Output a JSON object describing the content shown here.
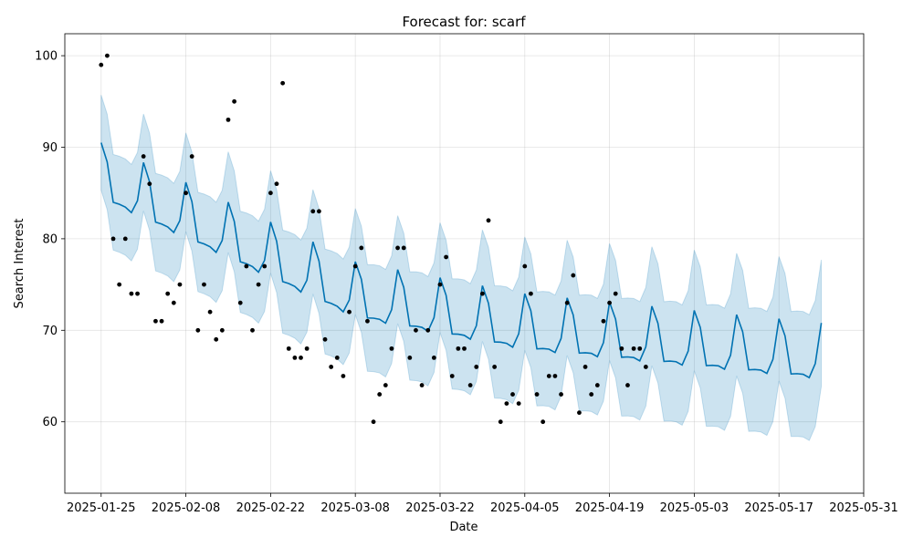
{
  "chart_data": {
    "type": "line",
    "title": "Forecast for: scarf",
    "xlabel": "Date",
    "ylabel": "Search Interest",
    "xlim": [
      "2025-01-19",
      "2025-05-31"
    ],
    "ylim": [
      52.2,
      102.4
    ],
    "x_ticks": [
      "2025-01-25",
      "2025-02-08",
      "2025-02-22",
      "2025-03-08",
      "2025-03-22",
      "2025-04-05",
      "2025-04-19",
      "2025-05-03",
      "2025-05-17",
      "2025-05-31"
    ],
    "y_ticks": [
      60,
      70,
      80,
      90,
      100
    ],
    "grid": true,
    "colors": {
      "forecast_line": "#0072b2",
      "uncertainty_band": "#0072b2",
      "observed_points": "#000000"
    },
    "observed": {
      "x": [
        "2025-01-25",
        "2025-01-26",
        "2025-01-27",
        "2025-01-28",
        "2025-01-29",
        "2025-01-30",
        "2025-01-31",
        "2025-02-01",
        "2025-02-02",
        "2025-02-03",
        "2025-02-04",
        "2025-02-05",
        "2025-02-06",
        "2025-02-07",
        "2025-02-08",
        "2025-02-09",
        "2025-02-10",
        "2025-02-11",
        "2025-02-12",
        "2025-02-13",
        "2025-02-14",
        "2025-02-15",
        "2025-02-16",
        "2025-02-17",
        "2025-02-18",
        "2025-02-19",
        "2025-02-20",
        "2025-02-21",
        "2025-02-22",
        "2025-02-23",
        "2025-02-24",
        "2025-02-25",
        "2025-02-26",
        "2025-02-27",
        "2025-02-28",
        "2025-03-01",
        "2025-03-02",
        "2025-03-03",
        "2025-03-04",
        "2025-03-05",
        "2025-03-06",
        "2025-03-07",
        "2025-03-08",
        "2025-03-09",
        "2025-03-10",
        "2025-03-11",
        "2025-03-12",
        "2025-03-13",
        "2025-03-14",
        "2025-03-15",
        "2025-03-16",
        "2025-03-17",
        "2025-03-18",
        "2025-03-19",
        "2025-03-20",
        "2025-03-21",
        "2025-03-22",
        "2025-03-23",
        "2025-03-24",
        "2025-03-25",
        "2025-03-26",
        "2025-03-27",
        "2025-03-28",
        "2025-03-29",
        "2025-03-30",
        "2025-03-31",
        "2025-04-01",
        "2025-04-02",
        "2025-04-03",
        "2025-04-04",
        "2025-04-05",
        "2025-04-06",
        "2025-04-07",
        "2025-04-08",
        "2025-04-09",
        "2025-04-10",
        "2025-04-11",
        "2025-04-12",
        "2025-04-13",
        "2025-04-14",
        "2025-04-15",
        "2025-04-16",
        "2025-04-17",
        "2025-04-18",
        "2025-04-19",
        "2025-04-20",
        "2025-04-21",
        "2025-04-22",
        "2025-04-23",
        "2025-04-24",
        "2025-04-25"
      ],
      "y": [
        99,
        100,
        80,
        75,
        80,
        74,
        74,
        89,
        86,
        71,
        71,
        74,
        73,
        75,
        85,
        89,
        70,
        75,
        72,
        69,
        70,
        93,
        95,
        73,
        77,
        70,
        75,
        77,
        85,
        86,
        97,
        68,
        67,
        67,
        68,
        83,
        83,
        69,
        66,
        67,
        65,
        72,
        77,
        79,
        71,
        60,
        63,
        64,
        68,
        79,
        79,
        67,
        70,
        64,
        70,
        67,
        75,
        78,
        65,
        68,
        68,
        64,
        66,
        74,
        82,
        66,
        60,
        62,
        63,
        62,
        77,
        74,
        63,
        60,
        65,
        65,
        63,
        73,
        76,
        61,
        66,
        63,
        64,
        71,
        73,
        74,
        68,
        64,
        68,
        68,
        66
      ]
    },
    "forecast": {
      "x_start": "2025-01-25",
      "x_end": "2025-05-24",
      "step": "1 day",
      "weekly_pattern": [
        2.0,
        0.2,
        -3.9,
        -3.8,
        -3.8,
        -4.1,
        -2.5
      ],
      "trend": [
        {
          "x": "2025-01-25",
          "y": 88.5
        },
        {
          "x": "2025-03-08",
          "y": 75.5
        },
        {
          "x": "2025-04-05",
          "y": 72.0
        },
        {
          "x": "2025-05-24",
          "y": 68.8
        }
      ],
      "interval_half_width": {
        "start": 5.2,
        "end": 6.9
      }
    }
  }
}
